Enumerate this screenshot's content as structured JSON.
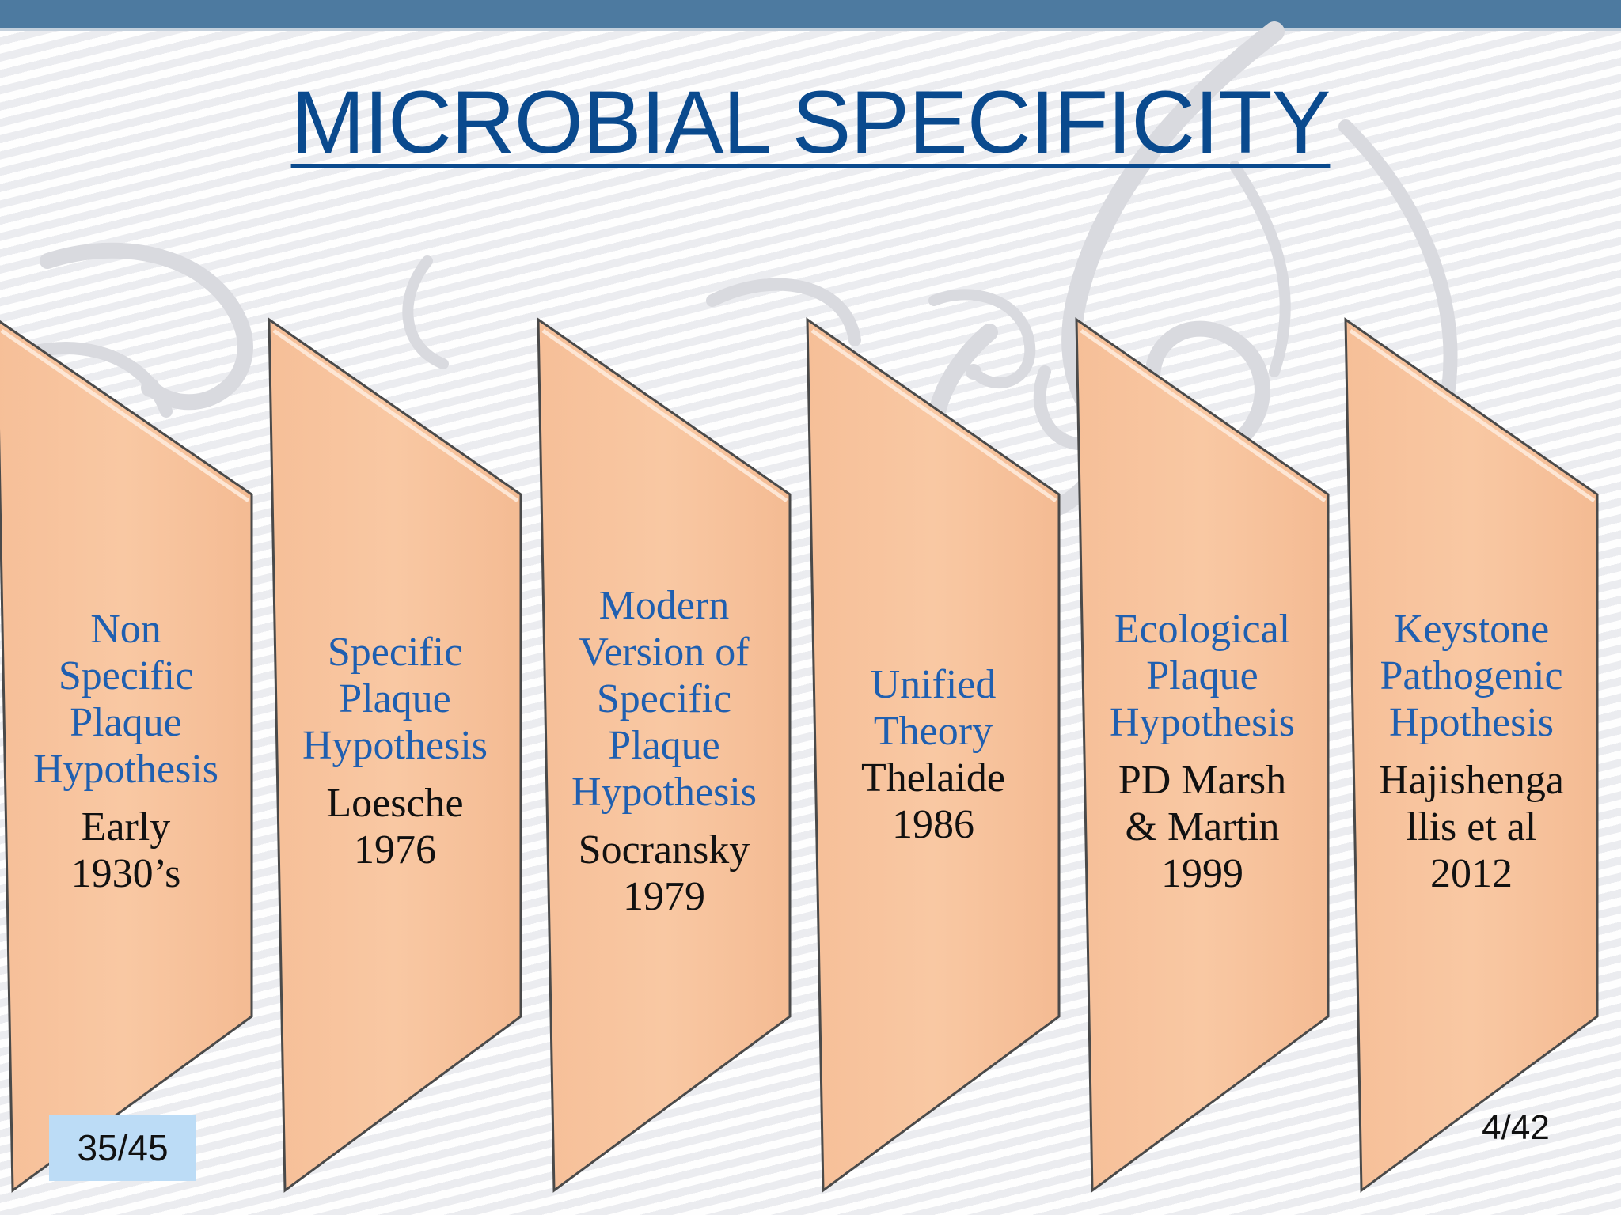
{
  "title": "MICROBIAL SPECIFICITY",
  "panels": [
    {
      "hypothesis": [
        "Non",
        "Specific",
        "Plaque",
        "Hypothesis"
      ],
      "attribution": [
        "Early",
        "1930’s"
      ]
    },
    {
      "hypothesis": [
        "Specific",
        "Plaque",
        "Hypothesis"
      ],
      "attribution": [
        "Loesche",
        "1976"
      ]
    },
    {
      "hypothesis": [
        "Modern",
        "Version of",
        "Specific",
        "Plaque",
        "Hypothesis"
      ],
      "attribution": [
        "Socransky",
        "1979"
      ]
    },
    {
      "hypothesis": [
        "Unified",
        "Theory"
      ],
      "attribution": [
        "Thelaide",
        "1986"
      ]
    },
    {
      "hypothesis": [
        "Ecological",
        "Plaque",
        "Hypothesis"
      ],
      "attribution": [
        "PD Marsh",
        "& Martin",
        "1999"
      ]
    },
    {
      "hypothesis": [
        "Keystone",
        "Pathogenic",
        "Hpothesis"
      ],
      "attribution": [
        "Hajishenga",
        "llis et al",
        "2012"
      ]
    }
  ],
  "page_counter_left": "35/45",
  "page_counter_right": "4/42",
  "colors": {
    "top_bar": "#4d7aa0",
    "title": "#0a4a8e",
    "panel_fill": "#f9c8a3",
    "panel_stroke": "#4a4a4a",
    "hypothesis_text": "#1f5fb0",
    "attribution_text": "#111111",
    "page_badge": "#bcdcf6"
  }
}
